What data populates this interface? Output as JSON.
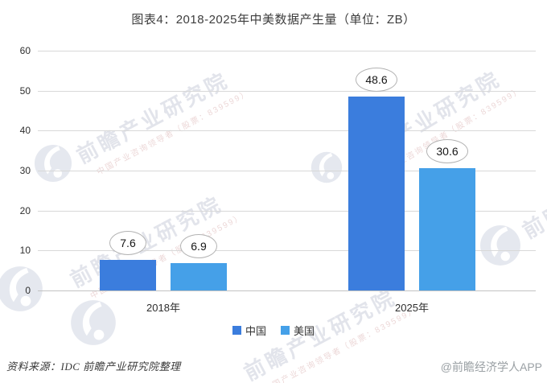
{
  "chart_data": {
    "type": "bar",
    "title": "图表4：2018-2025年中美数据产生量（单位：ZB）",
    "categories": [
      "2018年",
      "2025年"
    ],
    "series": [
      {
        "name": "中国",
        "color": "#3b7ddd",
        "values": [
          7.6,
          48.6
        ]
      },
      {
        "name": "美国",
        "color": "#45a0e8",
        "values": [
          6.9,
          30.6
        ]
      }
    ],
    "data_labels": [
      [
        "7.6",
        "48.6"
      ],
      [
        "6.9",
        "30.6"
      ]
    ],
    "ylim": [
      0,
      60
    ],
    "yticks": [
      0,
      10,
      20,
      30,
      40,
      50,
      60
    ],
    "xlabel": "",
    "ylabel": "",
    "grid": true,
    "legend_position": "bottom",
    "data_label_style": "ellipse-callout"
  },
  "footer": {
    "source": "资料来源：IDC  前瞻产业研究院整理",
    "credit": "@前瞻经济学人APP"
  },
  "watermark": {
    "brand_text": "前瞻产业研究院",
    "sub_text": "中国产业咨询领导者（股票：839599）"
  }
}
